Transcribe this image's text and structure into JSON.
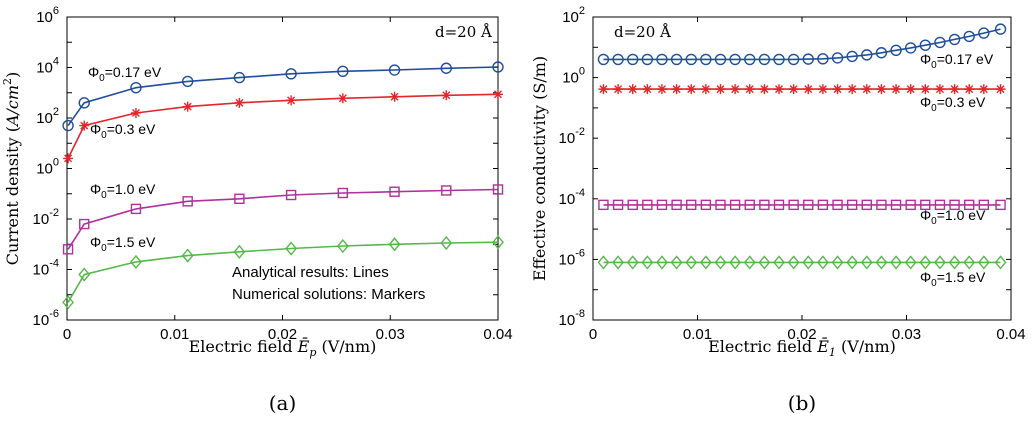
{
  "chart_data": [
    {
      "type": "line",
      "panel_label": "(a)",
      "xlabel": "Electric field Ē_p (V/nm)",
      "xlabel_parts": {
        "pre": "Electric field ",
        "sym": "Ē",
        "sub": "p",
        "post": " (V/nm)"
      },
      "ylabel": "Current density (A/cm²)",
      "ylabel_parts": {
        "pre": "Current density (",
        "unit": "A/cm",
        "sup": "2",
        "post": ")"
      },
      "y_scale": "log",
      "xlim": [
        0,
        0.04
      ],
      "ylim_exp": [
        -6,
        6
      ],
      "x_ticks": [
        "0",
        "0.01",
        "0.02",
        "0.03",
        "0.04"
      ],
      "y_tick_exponents": [
        "-6",
        "-4",
        "-2",
        "0",
        "2",
        "4",
        "6"
      ],
      "y_tick_base": "10",
      "grid": false,
      "annotation_gap": "d=20 Å",
      "legend_notes": [
        "Analytical results: Lines",
        "Numerical solutions: Markers"
      ],
      "series": [
        {
          "name": "Φ0=0.17 eV",
          "label_main": "Φ",
          "label_sub": "0",
          "label_rest": "=0.17 eV",
          "color": "#1f4e9c",
          "marker": "circle",
          "x": [
            0.0001,
            0.0016,
            0.0064,
            0.0112,
            0.016,
            0.0208,
            0.0256,
            0.0304,
            0.0352,
            0.04
          ],
          "y_log10": [
            1.7,
            2.6,
            3.2,
            3.45,
            3.6,
            3.75,
            3.85,
            3.9,
            3.97,
            4.02
          ]
        },
        {
          "name": "Φ0=0.3 eV",
          "label_main": "Φ",
          "label_sub": "0",
          "label_rest": "=0.3 eV",
          "color": "#e4252b",
          "marker": "asterisk",
          "x": [
            0.0001,
            0.0016,
            0.0064,
            0.0112,
            0.016,
            0.0208,
            0.0256,
            0.0304,
            0.0352,
            0.04
          ],
          "y_log10": [
            0.4,
            1.7,
            2.2,
            2.45,
            2.6,
            2.7,
            2.78,
            2.84,
            2.9,
            2.94
          ]
        },
        {
          "name": "Φ0=1.0 eV",
          "label_main": "Φ",
          "label_sub": "0",
          "label_rest": "=1.0 eV",
          "color": "#b0309c",
          "marker": "square",
          "x": [
            0.0001,
            0.0016,
            0.0064,
            0.0112,
            0.016,
            0.0208,
            0.0256,
            0.0304,
            0.0352,
            0.04
          ],
          "y_log10": [
            -3.2,
            -2.2,
            -1.6,
            -1.3,
            -1.2,
            -1.05,
            -0.97,
            -0.92,
            -0.87,
            -0.83
          ]
        },
        {
          "name": "Φ0=1.5 eV",
          "label_main": "Φ",
          "label_sub": "0",
          "label_rest": "=1.5 eV",
          "color": "#54b948",
          "marker": "diamond",
          "x": [
            0.0001,
            0.0016,
            0.0064,
            0.0112,
            0.016,
            0.0208,
            0.0256,
            0.0304,
            0.0352,
            0.04
          ],
          "y_log10": [
            -5.3,
            -4.2,
            -3.7,
            -3.45,
            -3.3,
            -3.17,
            -3.07,
            -3.0,
            -2.95,
            -2.92
          ]
        }
      ]
    },
    {
      "type": "line",
      "panel_label": "(b)",
      "xlabel": "Electric field Ē_1 (V/nm)",
      "xlabel_parts": {
        "pre": "Electric field ",
        "sym": "Ē",
        "sub": "1",
        "post": " (V/nm)"
      },
      "ylabel": "Effective conductivity (S/m)",
      "y_scale": "log",
      "xlim": [
        0,
        0.04
      ],
      "ylim_exp": [
        -8,
        2
      ],
      "x_ticks": [
        "0",
        "0.01",
        "0.02",
        "0.03",
        "0.04"
      ],
      "y_tick_exponents": [
        "-8",
        "-6",
        "-4",
        "-2",
        "0",
        "2"
      ],
      "y_tick_base": "10",
      "grid": false,
      "annotation_gap": "d=20 Å",
      "series": [
        {
          "name": "Φ0=0.17 eV",
          "label_main": "Φ",
          "label_sub": "0",
          "label_rest": "=0.17 eV",
          "color": "#1f4e9c",
          "marker": "circle",
          "x": [
            0.001,
            0.0024,
            0.0038,
            0.0052,
            0.0066,
            0.008,
            0.0094,
            0.0108,
            0.0122,
            0.0136,
            0.015,
            0.0164,
            0.0178,
            0.0192,
            0.0206,
            0.022,
            0.0234,
            0.0248,
            0.0262,
            0.0276,
            0.029,
            0.0304,
            0.0318,
            0.0332,
            0.0346,
            0.036,
            0.0374,
            0.039
          ],
          "y_log10": [
            0.6,
            0.6,
            0.6,
            0.6,
            0.6,
            0.6,
            0.6,
            0.6,
            0.6,
            0.6,
            0.6,
            0.6,
            0.6,
            0.6,
            0.61,
            0.62,
            0.65,
            0.7,
            0.75,
            0.82,
            0.9,
            0.98,
            1.07,
            1.16,
            1.26,
            1.36,
            1.47,
            1.6
          ]
        },
        {
          "name": "Φ0=0.3 eV",
          "label_main": "Φ",
          "label_sub": "0",
          "label_rest": "=0.3 eV",
          "color": "#e4252b",
          "marker": "asterisk",
          "x": [
            0.001,
            0.0024,
            0.0038,
            0.0052,
            0.0066,
            0.008,
            0.0094,
            0.0108,
            0.0122,
            0.0136,
            0.015,
            0.0164,
            0.0178,
            0.0192,
            0.0206,
            0.022,
            0.0234,
            0.0248,
            0.0262,
            0.0276,
            0.029,
            0.0304,
            0.0318,
            0.0332,
            0.0346,
            0.036,
            0.0374,
            0.039
          ],
          "y_log10": [
            -0.38,
            -0.38,
            -0.38,
            -0.38,
            -0.38,
            -0.38,
            -0.38,
            -0.38,
            -0.38,
            -0.38,
            -0.38,
            -0.38,
            -0.38,
            -0.38,
            -0.38,
            -0.38,
            -0.38,
            -0.38,
            -0.38,
            -0.38,
            -0.38,
            -0.38,
            -0.38,
            -0.38,
            -0.38,
            -0.38,
            -0.38,
            -0.38
          ]
        },
        {
          "name": "Φ0=1.0 eV",
          "label_main": "Φ",
          "label_sub": "0",
          "label_rest": "=1.0 eV",
          "color": "#b0309c",
          "marker": "square",
          "x": [
            0.001,
            0.0024,
            0.0038,
            0.0052,
            0.0066,
            0.008,
            0.0094,
            0.0108,
            0.0122,
            0.0136,
            0.015,
            0.0164,
            0.0178,
            0.0192,
            0.0206,
            0.022,
            0.0234,
            0.0248,
            0.0262,
            0.0276,
            0.029,
            0.0304,
            0.0318,
            0.0332,
            0.0346,
            0.036,
            0.0374,
            0.039
          ],
          "y_log10": [
            -4.2,
            -4.2,
            -4.2,
            -4.2,
            -4.2,
            -4.2,
            -4.2,
            -4.2,
            -4.2,
            -4.2,
            -4.2,
            -4.2,
            -4.2,
            -4.2,
            -4.2,
            -4.2,
            -4.2,
            -4.2,
            -4.2,
            -4.2,
            -4.2,
            -4.2,
            -4.2,
            -4.2,
            -4.2,
            -4.2,
            -4.2,
            -4.2
          ]
        },
        {
          "name": "Φ0=1.5 eV",
          "label_main": "Φ",
          "label_sub": "0",
          "label_rest": "=1.5 eV",
          "color": "#54b948",
          "marker": "diamond",
          "x": [
            0.001,
            0.0024,
            0.0038,
            0.0052,
            0.0066,
            0.008,
            0.0094,
            0.0108,
            0.0122,
            0.0136,
            0.015,
            0.0164,
            0.0178,
            0.0192,
            0.0206,
            0.022,
            0.0234,
            0.0248,
            0.0262,
            0.0276,
            0.029,
            0.0304,
            0.0318,
            0.0332,
            0.0346,
            0.036,
            0.0374,
            0.039
          ],
          "y_log10": [
            -6.1,
            -6.1,
            -6.1,
            -6.1,
            -6.1,
            -6.1,
            -6.1,
            -6.1,
            -6.1,
            -6.1,
            -6.1,
            -6.1,
            -6.1,
            -6.1,
            -6.1,
            -6.1,
            -6.1,
            -6.1,
            -6.1,
            -6.1,
            -6.1,
            -6.1,
            -6.1,
            -6.1,
            -6.1,
            -6.1,
            -6.1,
            -6.1
          ]
        }
      ]
    }
  ]
}
